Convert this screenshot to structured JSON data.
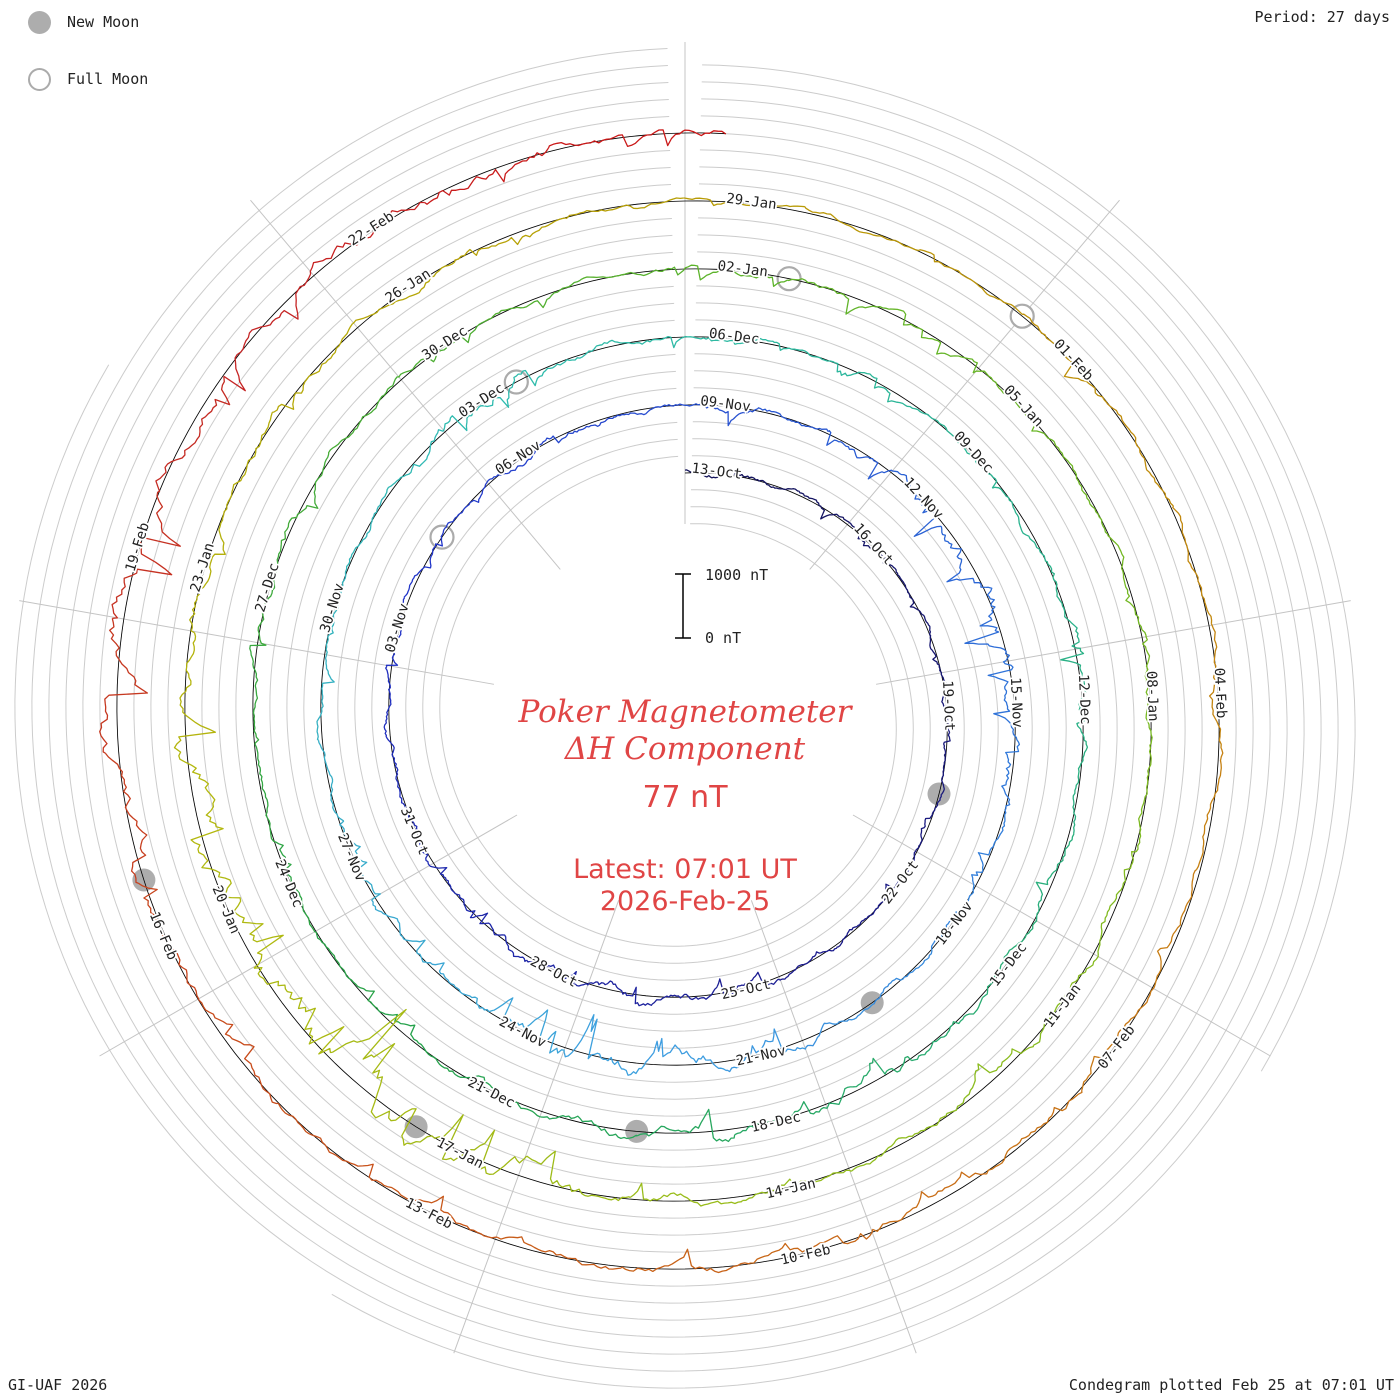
{
  "legend": {
    "new_moon": "New Moon",
    "full_moon": "Full Moon"
  },
  "header": {
    "period": "Period: 27 days"
  },
  "footer": {
    "left": "GI-UAF 2026",
    "right": "Condegram plotted Feb 25 at 07:01 UT"
  },
  "center": {
    "title_line1": "Poker Magnetometer",
    "title_line2": "ΔH Component",
    "current_value": "77 nT",
    "latest_line1": "Latest: 07:01 UT",
    "latest_line2": "2026-Feb-25"
  },
  "chart_data": {
    "type": "line",
    "variant": "condegram (polar spiral magnetogram, one ring = one 27-day solar rotation, time runs clockwise from top, radius grows outward with time)",
    "station": "Poker",
    "component": "ΔH",
    "units": "nT",
    "period_days": 27,
    "days_per_label": 3,
    "sectors_per_ring": 9,
    "start_date": "2025-Oct-13",
    "end_date": "2026-Feb-25 07:01 UT",
    "total_days": 135.3,
    "latest_value_nT": 77,
    "scale_bar": {
      "top_label": "1000 nT",
      "bottom_label": "0 nT",
      "nT_span": 1000
    },
    "date_labels": [
      "13-Oct",
      "16-Oct",
      "19-Oct",
      "22-Oct",
      "25-Oct",
      "28-Oct",
      "31-Oct",
      "03-Nov",
      "06-Nov",
      "09-Nov",
      "12-Nov",
      "15-Nov",
      "18-Nov",
      "21-Nov",
      "24-Nov",
      "27-Nov",
      "30-Nov",
      "03-Dec",
      "06-Dec",
      "09-Dec",
      "12-Dec",
      "15-Dec",
      "18-Dec",
      "21-Dec",
      "24-Dec",
      "27-Dec",
      "30-Dec",
      "02-Jan",
      "05-Jan",
      "08-Jan",
      "11-Jan",
      "14-Jan",
      "17-Jan",
      "20-Jan",
      "23-Jan",
      "26-Jan",
      "29-Jan",
      "01-Feb",
      "04-Feb",
      "07-Feb",
      "10-Feb",
      "13-Feb",
      "16-Feb",
      "19-Feb",
      "22-Feb"
    ],
    "moon_events": {
      "new_moon_day_offsets": [
        8,
        38,
        68,
        97,
        127
      ],
      "full_moon_day_offsets": [
        23,
        52,
        82,
        111
      ]
    },
    "daily_activity_est": [
      0.35,
      0.3,
      0.25,
      0.2,
      0.15,
      0.15,
      0.2,
      0.15,
      0.15,
      0.2,
      0.25,
      0.2,
      0.3,
      0.35,
      0.45,
      0.5,
      0.4,
      0.35,
      0.3,
      0.3,
      0.25,
      0.3,
      0.25,
      0.2,
      0.3,
      0.35,
      0.3,
      0.3,
      0.35,
      0.3,
      0.4,
      0.6,
      0.7,
      0.55,
      0.35,
      0.3,
      0.25,
      0.3,
      0.35,
      0.45,
      0.6,
      0.75,
      0.7,
      0.45,
      0.3,
      0.35,
      0.3,
      0.25,
      0.3,
      0.25,
      0.2,
      0.45,
      0.5,
      0.35,
      0.3,
      0.25,
      0.2,
      0.25,
      0.2,
      0.3,
      0.45,
      0.4,
      0.35,
      0.3,
      0.35,
      0.4,
      0.5,
      0.55,
      0.45,
      0.4,
      0.3,
      0.25,
      0.3,
      0.25,
      0.3,
      0.35,
      0.3,
      0.25,
      0.3,
      0.25,
      0.25,
      0.3,
      0.35,
      0.3,
      0.25,
      0.25,
      0.3,
      0.35,
      0.3,
      0.3,
      0.35,
      0.4,
      0.35,
      0.35,
      0.4,
      0.5,
      0.8,
      0.95,
      1.0,
      0.9,
      0.85,
      0.7,
      0.5,
      0.4,
      0.35,
      0.3,
      0.3,
      0.3,
      0.25,
      0.3,
      0.25,
      0.25,
      0.3,
      0.35,
      0.3,
      0.3,
      0.35,
      0.3,
      0.35,
      0.4,
      0.35,
      0.4,
      0.45,
      0.4,
      0.35,
      0.4,
      0.45,
      0.5,
      0.6,
      0.7,
      0.6,
      0.55,
      0.5,
      0.6,
      0.45
    ],
    "colormap_stops": [
      [
        0.0,
        "#14145a"
      ],
      [
        0.08,
        "#1b1b8c"
      ],
      [
        0.16,
        "#2133c8"
      ],
      [
        0.24,
        "#2e6fd8"
      ],
      [
        0.3,
        "#3fa0e0"
      ],
      [
        0.38,
        "#2fbcae"
      ],
      [
        0.46,
        "#29ae7c"
      ],
      [
        0.52,
        "#25a24a"
      ],
      [
        0.6,
        "#5cb32a"
      ],
      [
        0.68,
        "#8fbd1e"
      ],
      [
        0.74,
        "#b3b80e"
      ],
      [
        0.8,
        "#b89b05"
      ],
      [
        0.86,
        "#c87d14"
      ],
      [
        0.92,
        "#c8501a"
      ],
      [
        0.97,
        "#c52525"
      ],
      [
        1.0,
        "#cc1414"
      ]
    ]
  }
}
